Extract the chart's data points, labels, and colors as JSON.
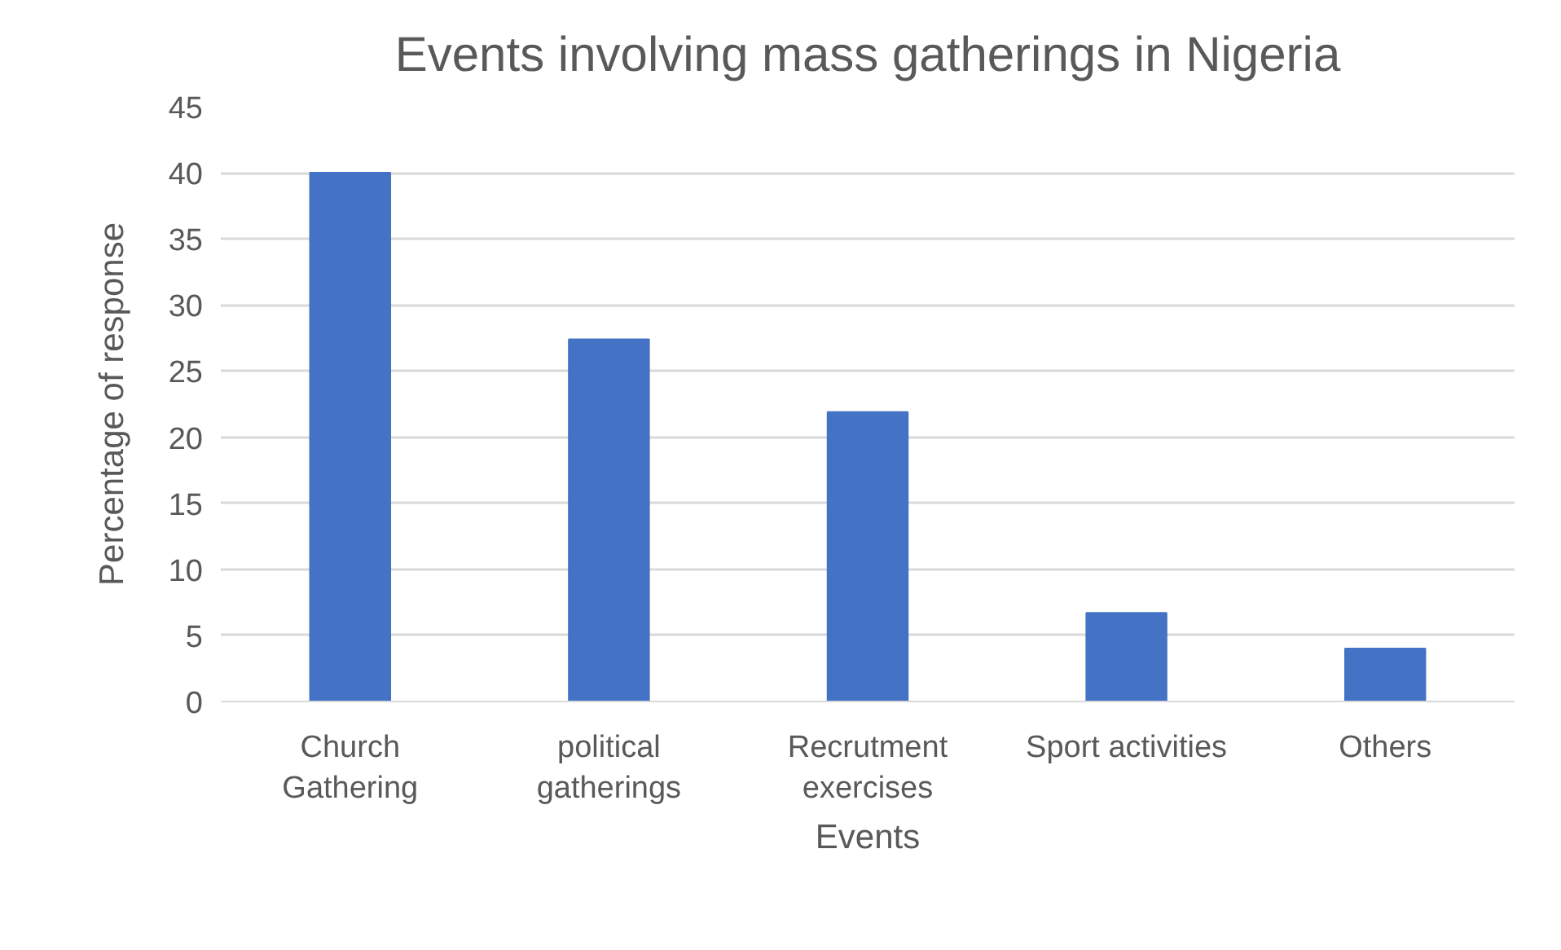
{
  "chart_data": {
    "type": "bar",
    "title": "Events involving mass gatherings in Nigeria",
    "categories": [
      "Church\nGathering",
      "political\ngatherings",
      "Recrutment\nexercises",
      "Sport activities",
      "Others"
    ],
    "values": [
      40,
      27.4,
      21.9,
      6.7,
      4.0
    ],
    "color": "#4472c4",
    "xlabel": "Events",
    "ylabel": "Percentage of response",
    "ylim": [
      0,
      45
    ],
    "yticks": [
      0,
      5,
      10,
      15,
      20,
      25,
      30,
      35,
      40,
      45
    ],
    "grid": "y"
  }
}
